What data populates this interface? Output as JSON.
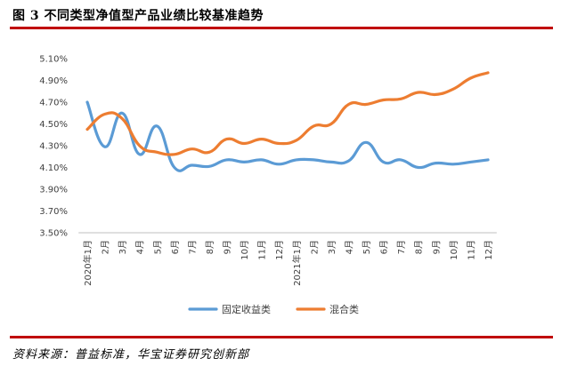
{
  "header": {
    "figure_title": "图 3  不同类型净值型产品业绩比较基准趋势"
  },
  "footer": {
    "source": "资料来源：普益标准，华宝证券研究创新部"
  },
  "colors": {
    "rule": "#c00000",
    "series_fixed": "#5b9bd5",
    "series_mixed": "#ed7d31",
    "tick_text": "#404040",
    "axis_line": "#bfbfbf"
  },
  "chart_data": {
    "type": "line",
    "title": "",
    "xlabel": "",
    "ylabel": "",
    "categories": [
      "2020年1月",
      "2月",
      "3月",
      "4月",
      "5月",
      "6月",
      "7月",
      "8月",
      "9月",
      "10月",
      "11月",
      "12月",
      "2021年1月",
      "2月",
      "3月",
      "4月",
      "5月",
      "6月",
      "7月",
      "8月",
      "9月",
      "10月",
      "11月",
      "12月"
    ],
    "yticks": [
      "3.50%",
      "3.70%",
      "3.90%",
      "4.10%",
      "4.30%",
      "4.50%",
      "4.70%",
      "4.90%",
      "5.10%"
    ],
    "ylim": [
      3.5,
      5.1
    ],
    "grid": false,
    "legend_position": "bottom",
    "smooth": true,
    "series": [
      {
        "name": "固定收益类",
        "color": "#5b9bd5",
        "values": [
          4.7,
          4.29,
          4.6,
          4.22,
          4.48,
          4.1,
          4.12,
          4.11,
          4.17,
          4.15,
          4.17,
          4.13,
          4.17,
          4.17,
          4.15,
          4.16,
          4.33,
          4.15,
          4.17,
          4.1,
          4.14,
          4.13,
          4.15,
          4.17
        ]
      },
      {
        "name": "混合类",
        "color": "#ed7d31",
        "values": [
          4.45,
          4.59,
          4.55,
          4.3,
          4.24,
          4.22,
          4.27,
          4.24,
          4.36,
          4.32,
          4.36,
          4.32,
          4.35,
          4.48,
          4.5,
          4.68,
          4.68,
          4.72,
          4.73,
          4.79,
          4.77,
          4.82,
          4.92,
          4.97
        ]
      }
    ]
  }
}
